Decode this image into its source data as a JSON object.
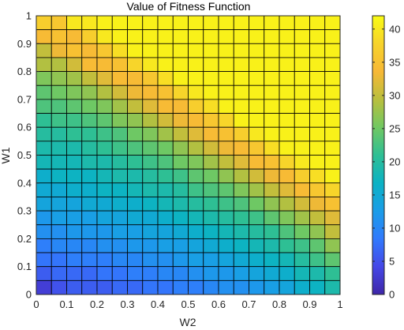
{
  "chart_data": {
    "type": "heatmap",
    "title": "Value of Fitness Function",
    "xlabel": "W2",
    "ylabel": "W1",
    "x_range": [
      0,
      1
    ],
    "y_range": [
      0,
      1
    ],
    "x_ticks": [
      "0",
      "0.1",
      "0.2",
      "0.3",
      "0.4",
      "0.5",
      "0.6",
      "0.7",
      "0.8",
      "0.9",
      "1"
    ],
    "y_ticks": [
      "0",
      "0.1",
      "0.2",
      "0.3",
      "0.4",
      "0.5",
      "0.6",
      "0.7",
      "0.8",
      "0.9",
      "1"
    ],
    "grid_size": 20,
    "colorbar": {
      "range": [
        0,
        42
      ],
      "ticks": [
        "0",
        "5",
        "10",
        "15",
        "20",
        "25",
        "30",
        "35",
        "40"
      ],
      "colormap": "parula"
    },
    "values_rows_top_to_bottom": [
      [
        37,
        36,
        40,
        40,
        41,
        41,
        41,
        41,
        41,
        41,
        41,
        41,
        41,
        41,
        41,
        41,
        41,
        41,
        41,
        41
      ],
      [
        34,
        35,
        34,
        37,
        40,
        41,
        41,
        41,
        41,
        41,
        41,
        41,
        41,
        41,
        41,
        41,
        41,
        41,
        41,
        41
      ],
      [
        30,
        33,
        35,
        34,
        36,
        39,
        41,
        41,
        41,
        41,
        41,
        41,
        41,
        41,
        41,
        41,
        41,
        41,
        41,
        41
      ],
      [
        29,
        29,
        31,
        34,
        34,
        35,
        38,
        40,
        41,
        41,
        41,
        41,
        41,
        41,
        41,
        41,
        41,
        41,
        41,
        41
      ],
      [
        26,
        27,
        28,
        30,
        32,
        34,
        34,
        36,
        39,
        41,
        41,
        41,
        41,
        41,
        41,
        41,
        41,
        41,
        41,
        41
      ],
      [
        24,
        25,
        26,
        27,
        29,
        31,
        33,
        34,
        35,
        38,
        40,
        41,
        41,
        41,
        41,
        41,
        41,
        41,
        41,
        41
      ],
      [
        23,
        23,
        24,
        25,
        26,
        28,
        30,
        32,
        34,
        34,
        37,
        39,
        41,
        41,
        41,
        41,
        41,
        41,
        41,
        41
      ],
      [
        21,
        22,
        22,
        23,
        24,
        26,
        27,
        29,
        31,
        33,
        34,
        36,
        38,
        41,
        41,
        41,
        41,
        41,
        41,
        41
      ],
      [
        20,
        20,
        21,
        21,
        22,
        23,
        25,
        26,
        28,
        30,
        32,
        34,
        35,
        37,
        40,
        41,
        41,
        41,
        41,
        41
      ],
      [
        19,
        19,
        19,
        20,
        21,
        22,
        23,
        24,
        25,
        27,
        29,
        31,
        33,
        34,
        36,
        39,
        41,
        41,
        41,
        41
      ],
      [
        18,
        18,
        18,
        19,
        19,
        20,
        21,
        22,
        23,
        25,
        26,
        28,
        30,
        32,
        34,
        35,
        38,
        40,
        41,
        41
      ],
      [
        16,
        17,
        17,
        17,
        18,
        19,
        19,
        20,
        21,
        22,
        24,
        25,
        27,
        29,
        31,
        33,
        34,
        37,
        39,
        41
      ],
      [
        15,
        15,
        16,
        16,
        17,
        17,
        18,
        19,
        19,
        20,
        22,
        23,
        24,
        26,
        28,
        30,
        32,
        34,
        36,
        38
      ],
      [
        14,
        14,
        14,
        15,
        15,
        16,
        16,
        17,
        18,
        19,
        20,
        21,
        22,
        23,
        25,
        27,
        29,
        31,
        33,
        35
      ],
      [
        12,
        13,
        13,
        13,
        14,
        14,
        15,
        15,
        16,
        17,
        18,
        19,
        20,
        21,
        22,
        24,
        26,
        28,
        30,
        32
      ],
      [
        11,
        11,
        12,
        12,
        12,
        13,
        13,
        14,
        14,
        15,
        16,
        17,
        18,
        19,
        20,
        21,
        23,
        25,
        27,
        30
      ],
      [
        9,
        10,
        10,
        10,
        11,
        11,
        12,
        12,
        13,
        13,
        14,
        15,
        16,
        17,
        18,
        19,
        21,
        22,
        24,
        27
      ],
      [
        8,
        8,
        9,
        9,
        9,
        10,
        10,
        11,
        11,
        12,
        13,
        13,
        14,
        15,
        16,
        17,
        18,
        20,
        22,
        24
      ],
      [
        6,
        7,
        7,
        7,
        8,
        8,
        9,
        9,
        10,
        10,
        11,
        12,
        12,
        13,
        14,
        15,
        16,
        18,
        19,
        21
      ],
      [
        3,
        5,
        6,
        6,
        6,
        7,
        7,
        8,
        8,
        9,
        9,
        10,
        11,
        11,
        12,
        13,
        14,
        16,
        17,
        19
      ]
    ]
  }
}
